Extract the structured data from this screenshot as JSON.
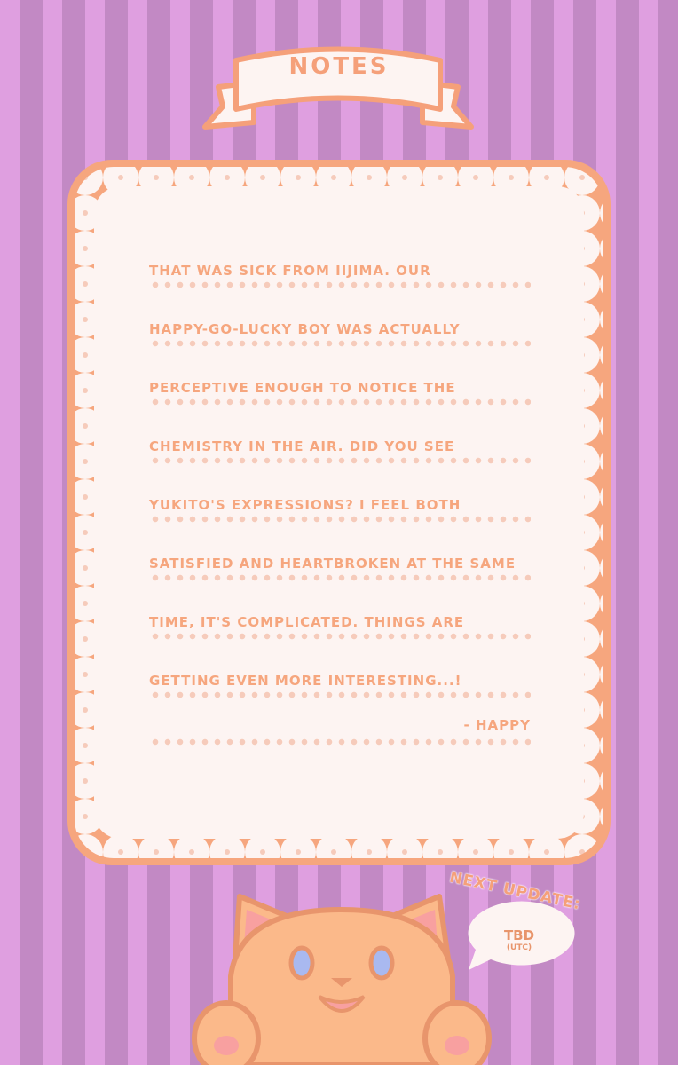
{
  "header": {
    "title": "NOTES"
  },
  "notes": {
    "lines": [
      "THAT WAS SICK FROM IIJIMA. OUR",
      "HAPPY-GO-LUCKY BOY WAS ACTUALLY",
      "PERCEPTIVE ENOUGH TO NOTICE THE",
      "CHEMISTRY IN THE AIR. DID YOU SEE",
      "YUKITO'S EXPRESSIONS? I FEEL BOTH",
      "SATISFIED AND HEARTBROKEN AT THE SAME",
      "TIME, IT'S COMPLICATED. THINGS ARE",
      "GETTING EVEN MORE INTERESTING...!"
    ],
    "signature": "- HAPPY"
  },
  "update": {
    "label": "NEXT UPDATE:",
    "value": "TBD",
    "timezone": "(UTC)"
  },
  "colors": {
    "accent": "#f6a67e",
    "stripe_light": "#df9fe0",
    "stripe_dark": "#c289c4",
    "paper": "#fdf4f2"
  }
}
